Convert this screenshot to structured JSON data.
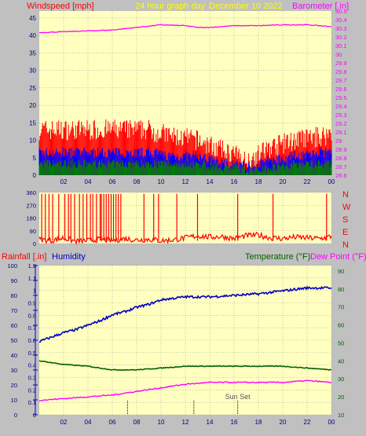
{
  "colors": {
    "panel_bg": "#c0c0c0",
    "plot_bg": "#ffffc0",
    "grid": "#a0a0a0",
    "windspeed": "#ff0000",
    "gust_band": "#ff0000",
    "avg_band": "#0000ff",
    "low_band": "#008000",
    "barometer": "#ff00ff",
    "title": "#ffff00",
    "direction": "#ff0000",
    "rainfall": "#ff0000",
    "humidity": "#0000c0",
    "temperature": "#006000",
    "dewpoint": "#ff00ff",
    "sun_marker": "#000000"
  },
  "header": {
    "windspeed_label": "Windspeed [mph]",
    "title": "24 hour graph day",
    "date": "December 10 2022",
    "barometer_label": "Barometer [.in]"
  },
  "lower_header": {
    "rain_label": "Rainfall [.in]",
    "humidity_label": "Humidity",
    "temp_label": "Temperature (°F)",
    "dew_label": "Dew Point (°F)"
  },
  "sun_set_label": "Sun Set",
  "chart_data": [
    {
      "type": "line",
      "id": "wind-baro",
      "x_ticks": [
        "02",
        "04",
        "06",
        "08",
        "10",
        "12",
        "14",
        "16",
        "18",
        "20",
        "22",
        "00"
      ],
      "y_left_ticks": [
        "0",
        "5",
        "10",
        "15",
        "20",
        "25",
        "30",
        "35",
        "40",
        "45"
      ],
      "y_left_range": [
        0,
        47
      ],
      "y_right_ticks": [
        "28.6",
        "28.7",
        "28.8",
        "28.9",
        "29",
        "29.1",
        "29.2",
        "29.3",
        "29.4",
        "29.5",
        "29.6",
        "29.7",
        "29.8",
        "29.9",
        "30",
        "30.1",
        "30.2",
        "30.3",
        "30.4",
        "30.5"
      ],
      "y_right_range": [
        28.6,
        30.5
      ],
      "series": [
        {
          "role": "windspeed-max",
          "x": [
            0,
            3,
            6,
            9,
            11,
            13,
            15,
            16,
            17,
            19,
            21,
            23,
            24
          ],
          "values": [
            10,
            10,
            10,
            10,
            8,
            7,
            4,
            3,
            1,
            5,
            7,
            8,
            9
          ]
        },
        {
          "role": "windspeed-avg",
          "x": [
            0,
            3,
            6,
            9,
            11,
            13,
            15,
            16,
            17,
            19,
            21,
            23,
            24
          ],
          "values": [
            5,
            5,
            5,
            5,
            4,
            4,
            2,
            2,
            1,
            3,
            4,
            5,
            5
          ]
        },
        {
          "role": "windspeed-min",
          "x": [
            0,
            3,
            6,
            9,
            11,
            13,
            15,
            16,
            17,
            19,
            21,
            23,
            24
          ],
          "values": [
            2,
            2,
            2,
            2,
            2,
            2,
            1,
            1,
            0,
            1,
            2,
            2,
            2
          ]
        },
        {
          "role": "barometer",
          "x": [
            0,
            2,
            4,
            6,
            8,
            10,
            12,
            13,
            14,
            16,
            18,
            20,
            22,
            24
          ],
          "values": [
            30.25,
            30.26,
            30.27,
            30.28,
            30.31,
            30.34,
            30.33,
            30.31,
            30.31,
            30.33,
            30.33,
            30.34,
            30.34,
            30.32
          ]
        }
      ]
    },
    {
      "type": "line",
      "id": "wind-direction",
      "x_ticks": [
        "02",
        "04",
        "06",
        "08",
        "10",
        "12",
        "14",
        "16",
        "18",
        "20",
        "22",
        "00"
      ],
      "y_ticks": [
        "0",
        "90",
        "180",
        "270",
        "360"
      ],
      "y_range": [
        0,
        360
      ],
      "compass_labels": [
        "N",
        "W",
        "S",
        "E",
        "N"
      ],
      "series": [
        {
          "role": "direction",
          "x": [
            0,
            1,
            2,
            3,
            4,
            5,
            6,
            7,
            8,
            9,
            10,
            11,
            12,
            13,
            14,
            15,
            16,
            17,
            18,
            19,
            20,
            21,
            22,
            23,
            24
          ],
          "values": [
            30,
            20,
            40,
            15,
            20,
            30,
            20,
            35,
            25,
            30,
            20,
            25,
            40,
            55,
            45,
            50,
            35,
            55,
            60,
            40,
            35,
            45,
            40,
            35,
            50
          ]
        }
      ]
    },
    {
      "type": "line",
      "id": "rain-humidity-temp",
      "x_ticks": [
        "02",
        "04",
        "06",
        "08",
        "10",
        "12",
        "14",
        "16",
        "18",
        "20",
        "22",
        "00"
      ],
      "humidity_ticks": [
        "0",
        "10",
        "20",
        "30",
        "40",
        "50",
        "60",
        "70",
        "80",
        "90",
        "100"
      ],
      "humidity_range": [
        0,
        100
      ],
      "rain_ticks": [
        "0",
        "0.1",
        "0.2",
        "0.3",
        "0.4",
        "0.5",
        "0.6",
        "0.7",
        "0.8",
        "0.9",
        "1",
        "1.1",
        "1.2"
      ],
      "rain_range": [
        0,
        1.2
      ],
      "temp_ticks": [
        "10",
        "20",
        "30",
        "40",
        "50",
        "60",
        "70",
        "80",
        "90"
      ],
      "temp_range": [
        10,
        93
      ],
      "series": [
        {
          "role": "humidity",
          "x": [
            0,
            1,
            2,
            3,
            4,
            5,
            6,
            7,
            8,
            9,
            10,
            11,
            12,
            14,
            16,
            18,
            20,
            22,
            23,
            24
          ],
          "values": [
            49,
            52,
            55,
            57,
            60,
            63,
            67,
            69,
            72,
            74,
            77,
            78,
            79,
            79,
            80,
            81,
            83,
            85,
            85,
            85
          ]
        },
        {
          "role": "temperature",
          "x": [
            0,
            2,
            4,
            6,
            7,
            8,
            10,
            12,
            14,
            16,
            18,
            20,
            22,
            24
          ],
          "values": [
            40,
            38,
            37,
            35,
            35,
            35,
            36,
            37,
            37,
            37,
            37,
            37,
            36,
            35
          ]
        },
        {
          "role": "dewpoint",
          "x": [
            0,
            2,
            4,
            6,
            7,
            8,
            10,
            12,
            14,
            16,
            18,
            20,
            22,
            24
          ],
          "values": [
            18,
            19,
            20,
            21,
            22,
            23,
            25,
            27,
            28,
            28,
            28,
            28,
            29,
            28
          ]
        },
        {
          "role": "rainfall",
          "x": [
            0,
            24
          ],
          "values": [
            0,
            0
          ]
        }
      ],
      "markers": [
        {
          "role": "sunrise",
          "x": 7.25
        },
        {
          "role": "noon",
          "x": 12.7
        },
        {
          "role": "sunset",
          "x": 16.3
        }
      ]
    }
  ]
}
